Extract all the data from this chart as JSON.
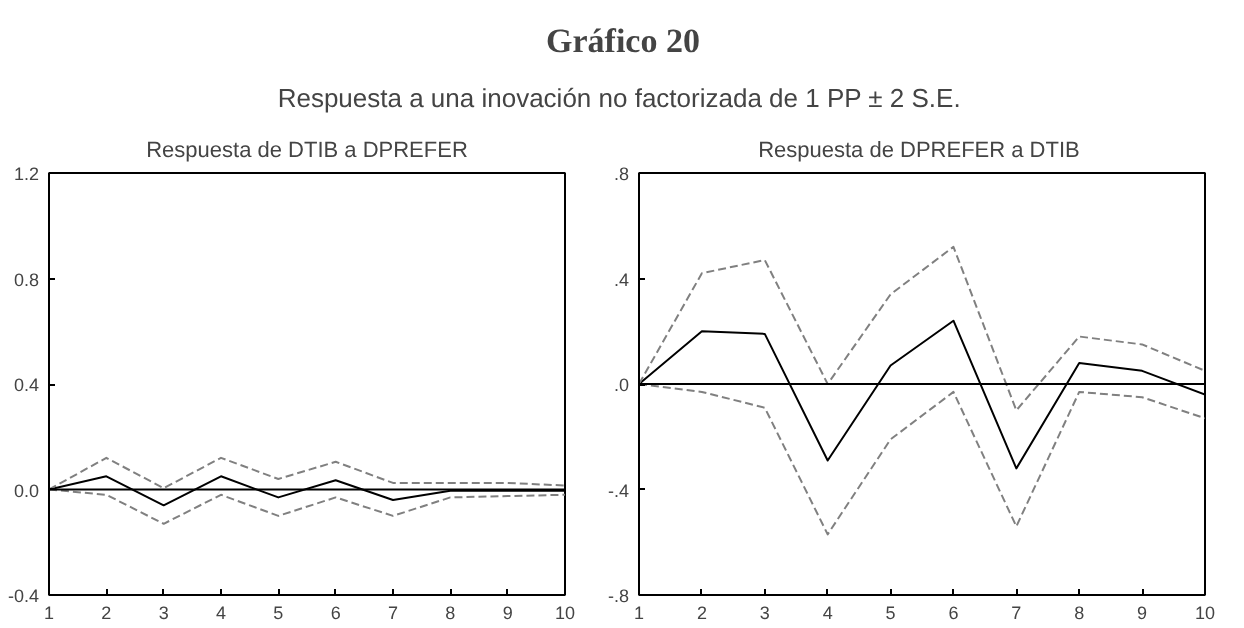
{
  "chart_data": [
    {
      "type": "other",
      "title": "Gráfico 20",
      "subtitle": "Respuesta a una inovación no factorizada de 1 PP  ± 2 S.E."
    },
    {
      "type": "line",
      "title": "Respuesta de DTIB a DPREFER",
      "x": [
        1,
        2,
        3,
        4,
        5,
        6,
        7,
        8,
        9,
        10
      ],
      "xlim": [
        1,
        10
      ],
      "xticks": [
        1,
        2,
        3,
        4,
        5,
        6,
        7,
        8,
        9,
        10
      ],
      "ylim": [
        -0.4,
        1.2
      ],
      "yticks": [
        {
          "value": -0.4,
          "label": "-0.4"
        },
        {
          "value": 0,
          "label": "0.0"
        },
        0.4,
        0.8,
        1.2
      ],
      "grid": false,
      "ref_lines": [
        {
          "axis": "y",
          "value": 0,
          "color": "#000000"
        }
      ],
      "series": [
        {
          "color": "#000000",
          "line_style": "solid",
          "values": [
            0,
            0.05,
            -0.06,
            0.05,
            -0.03,
            0.035,
            -0.04,
            -0.005,
            -0.005,
            -0.005
          ]
        },
        {
          "color": "#808080",
          "line_style": "dashed",
          "values": [
            0,
            0.12,
            0.005,
            0.12,
            0.04,
            0.105,
            0.025,
            0.025,
            0.025,
            0.015
          ]
        },
        {
          "color": "#808080",
          "line_style": "dashed",
          "values": [
            0,
            -0.02,
            -0.13,
            -0.02,
            -0.1,
            -0.03,
            -0.1,
            -0.03,
            -0.025,
            -0.02
          ]
        }
      ]
    },
    {
      "type": "line",
      "title": "Respuesta de  DPREFER a DTIB",
      "x": [
        1,
        2,
        3,
        4,
        5,
        6,
        7,
        8,
        9,
        10
      ],
      "xlim": [
        1,
        10
      ],
      "xticks": [
        1,
        2,
        3,
        4,
        5,
        6,
        7,
        8,
        9,
        10
      ],
      "ylim": [
        -0.8,
        0.8
      ],
      "yticks": [
        {
          "value": -0.8,
          "label": "-.8"
        },
        {
          "value": -0.4,
          "label": "-.4"
        },
        {
          "value": 0,
          "label": ".0"
        },
        {
          "value": 0.4,
          "label": ".4"
        },
        {
          "value": 0.8,
          "label": ".8"
        }
      ],
      "grid": false,
      "ref_lines": [
        {
          "axis": "y",
          "value": 0,
          "color": "#000000"
        }
      ],
      "series": [
        {
          "color": "#000000",
          "line_style": "solid",
          "values": [
            0,
            0.2,
            0.19,
            -0.29,
            0.07,
            0.24,
            -0.32,
            0.08,
            0.05,
            -0.04
          ]
        },
        {
          "color": "#808080",
          "line_style": "dashed",
          "values": [
            0,
            0.42,
            0.47,
            0.0,
            0.34,
            0.52,
            -0.1,
            0.18,
            0.15,
            0.05
          ]
        },
        {
          "color": "#808080",
          "line_style": "dashed",
          "values": [
            0,
            -0.03,
            -0.09,
            -0.57,
            -0.21,
            -0.03,
            -0.54,
            -0.03,
            -0.05,
            -0.13
          ]
        }
      ]
    }
  ]
}
